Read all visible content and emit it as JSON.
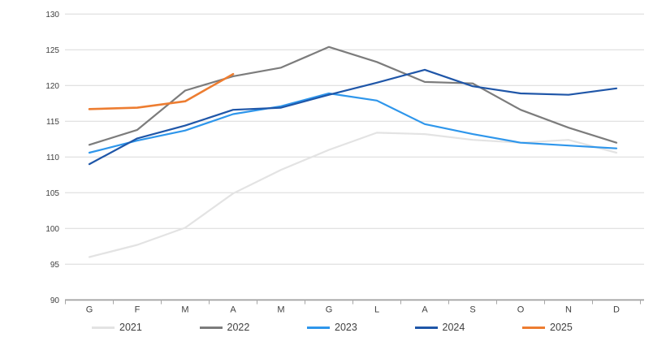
{
  "chart_data": {
    "type": "line",
    "title": "",
    "xlabel": "",
    "ylabel": "",
    "categories": [
      "G",
      "F",
      "M",
      "A",
      "M",
      "G",
      "L",
      "A",
      "S",
      "O",
      "N",
      "D"
    ],
    "series": [
      {
        "name": "2021",
        "color": "#E3E3E3",
        "values": [
          96.0,
          97.7,
          100.1,
          104.9,
          108.2,
          111.0,
          113.4,
          113.2,
          112.4,
          112.0,
          112.4,
          110.6
        ]
      },
      {
        "name": "2022",
        "color": "#7C7C7C",
        "values": [
          111.7,
          113.8,
          119.3,
          121.3,
          122.5,
          125.4,
          123.3,
          120.5,
          120.3,
          116.6,
          114.1,
          112.0
        ]
      },
      {
        "name": "2023",
        "color": "#2E96EB",
        "values": [
          110.6,
          112.3,
          113.7,
          116.0,
          117.1,
          118.9,
          117.9,
          114.6,
          113.2,
          112.0,
          111.6,
          111.2
        ]
      },
      {
        "name": "2024",
        "color": "#1F56A8",
        "values": [
          109.0,
          112.6,
          114.4,
          116.6,
          116.9,
          118.7,
          120.4,
          122.2,
          119.9,
          118.9,
          118.7,
          119.6
        ]
      },
      {
        "name": "2025",
        "color": "#ED7D31",
        "values": [
          116.7,
          116.9,
          117.8,
          121.6,
          null,
          null,
          null,
          null,
          null,
          null,
          null,
          null
        ]
      }
    ],
    "ylim": [
      90,
      130
    ],
    "y_ticks": [
      130,
      125,
      120,
      115,
      110,
      105,
      100,
      95,
      90
    ],
    "grid": "horizontal",
    "legend_position": "bottom",
    "legend_labels": [
      "2021",
      "2022",
      "2023",
      "2024",
      "2025"
    ]
  },
  "colors": {
    "gridline": "#D9D9D9",
    "axis_line": "#A6A6A6",
    "tick_text": "#404040",
    "legend_text": "#404040"
  }
}
